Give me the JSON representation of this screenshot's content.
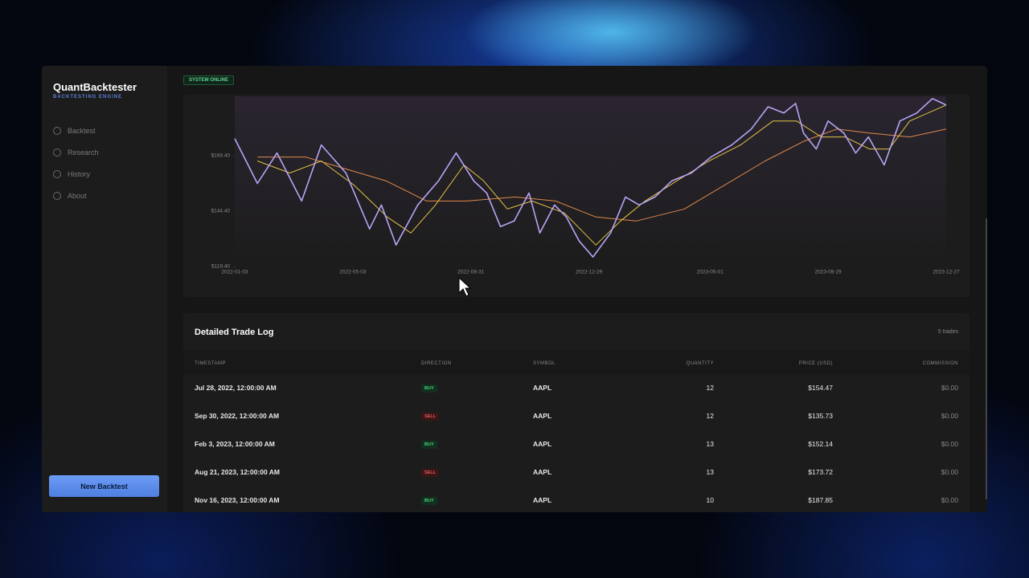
{
  "app": {
    "name": "QuantBacktester",
    "subtitle": "BACKTESTING ENGINE",
    "status": "SYSTEM ONLINE"
  },
  "nav": [
    "Backtest",
    "Research",
    "History",
    "About"
  ],
  "new_button": "New Backtest",
  "chart_data": {
    "type": "line",
    "xlim": [
      "2022-01-03",
      "2023-12-27"
    ],
    "xticks": [
      "2022-01-03",
      "2022-05-03",
      "2022-08-31",
      "2022-12-29",
      "2023-05-01",
      "2023-08-29",
      "2023-12-27"
    ],
    "ylim": [
      119.4,
      196
    ],
    "yticks": [
      {
        "value": 119.4,
        "label": "$119.40"
      },
      {
        "value": 144.4,
        "label": "$144.40"
      },
      {
        "value": 169.4,
        "label": "$169.40"
      }
    ],
    "series": [
      {
        "color": "#b9a4f5",
        "x": [
          "2022-01-03",
          "2022-01-26",
          "2022-02-15",
          "2022-03-12",
          "2022-04-01",
          "2022-04-26",
          "2022-05-20",
          "2022-06-01",
          "2022-06-16",
          "2022-07-08",
          "2022-07-29",
          "2022-08-16",
          "2022-09-03",
          "2022-09-16",
          "2022-09-30",
          "2022-10-14",
          "2022-10-29",
          "2022-11-09",
          "2022-11-24",
          "2022-12-06",
          "2022-12-19",
          "2023-01-02",
          "2023-01-20",
          "2023-02-04",
          "2023-02-18",
          "2023-03-06",
          "2023-03-23",
          "2023-04-12",
          "2023-05-02",
          "2023-05-23",
          "2023-06-12",
          "2023-06-29",
          "2023-07-15",
          "2023-07-27",
          "2023-08-04",
          "2023-08-17",
          "2023-08-29",
          "2023-09-14",
          "2023-09-26",
          "2023-10-09",
          "2023-10-25",
          "2023-11-10",
          "2023-11-27",
          "2023-12-13",
          "2023-12-27"
        ],
        "values": [
          177.0,
          156.8,
          170.5,
          148.9,
          174.1,
          161.5,
          136.3,
          147.1,
          129.1,
          147.1,
          157.9,
          170.5,
          157.9,
          152.5,
          137.4,
          139.9,
          152.5,
          134.5,
          147.1,
          141.7,
          130.9,
          123.7,
          134.5,
          150.7,
          147.1,
          150.7,
          157.9,
          161.5,
          168.7,
          174.1,
          181.3,
          191.3,
          188.5,
          192.8,
          179.5,
          172.3,
          184.9,
          179.5,
          170.5,
          177.7,
          165.1,
          184.9,
          188.5,
          195.0,
          192.1
        ]
      },
      {
        "color": "#e2c445",
        "x": [
          "2022-01-26",
          "2022-02-28",
          "2022-04-01",
          "2022-05-04",
          "2022-06-07",
          "2022-07-01",
          "2022-07-26",
          "2022-08-24",
          "2022-09-13",
          "2022-10-07",
          "2022-11-01",
          "2022-12-04",
          "2023-01-05",
          "2023-01-30",
          "2023-02-24",
          "2023-03-28",
          "2023-04-30",
          "2023-06-01",
          "2023-07-04",
          "2023-07-28",
          "2023-08-22",
          "2023-09-15",
          "2023-10-10",
          "2023-10-30",
          "2023-11-20",
          "2023-12-27"
        ],
        "values": [
          166.9,
          161.5,
          166.9,
          156.1,
          141.7,
          134.5,
          147.1,
          165.1,
          157.9,
          145.3,
          148.9,
          143.5,
          129.1,
          139.9,
          148.9,
          157.9,
          166.9,
          174.1,
          184.9,
          184.9,
          177.7,
          177.7,
          172.3,
          172.3,
          184.9,
          192.1
        ]
      },
      {
        "color": "#e0894a",
        "x": [
          "2022-01-26",
          "2022-03-16",
          "2022-04-26",
          "2022-06-06",
          "2022-07-17",
          "2022-08-27",
          "2022-10-15",
          "2022-11-25",
          "2023-01-05",
          "2023-02-15",
          "2023-04-05",
          "2023-05-16",
          "2023-06-26",
          "2023-08-05",
          "2023-09-07",
          "2023-10-10",
          "2023-11-20",
          "2023-12-27"
        ],
        "values": [
          168.7,
          168.7,
          163.3,
          157.9,
          148.9,
          148.9,
          150.7,
          148.9,
          141.7,
          139.9,
          145.3,
          156.1,
          166.9,
          175.9,
          181.3,
          179.5,
          177.7,
          181.3
        ]
      }
    ]
  },
  "trade_log": {
    "title": "Detailed Trade Log",
    "count": "5 trades",
    "columns": [
      "TIMESTAMP",
      "DIRECTION",
      "SYMBOL",
      "QUANTITY",
      "PRICE (USD)",
      "COMMISSION"
    ],
    "rows": [
      [
        "Jul 28, 2022, 12:00:00 AM",
        "BUY",
        "AAPL",
        "12",
        "$154.47",
        "$0.00"
      ],
      [
        "Sep 30, 2022, 12:00:00 AM",
        "SELL",
        "AAPL",
        "12",
        "$135.73",
        "$0.00"
      ],
      [
        "Feb 3, 2023, 12:00:00 AM",
        "BUY",
        "AAPL",
        "13",
        "$152.14",
        "$0.00"
      ],
      [
        "Aug 21, 2023, 12:00:00 AM",
        "SELL",
        "AAPL",
        "13",
        "$173.72",
        "$0.00"
      ],
      [
        "Nov 16, 2023, 12:00:00 AM",
        "BUY",
        "AAPL",
        "10",
        "$187.85",
        "$0.00"
      ]
    ]
  }
}
